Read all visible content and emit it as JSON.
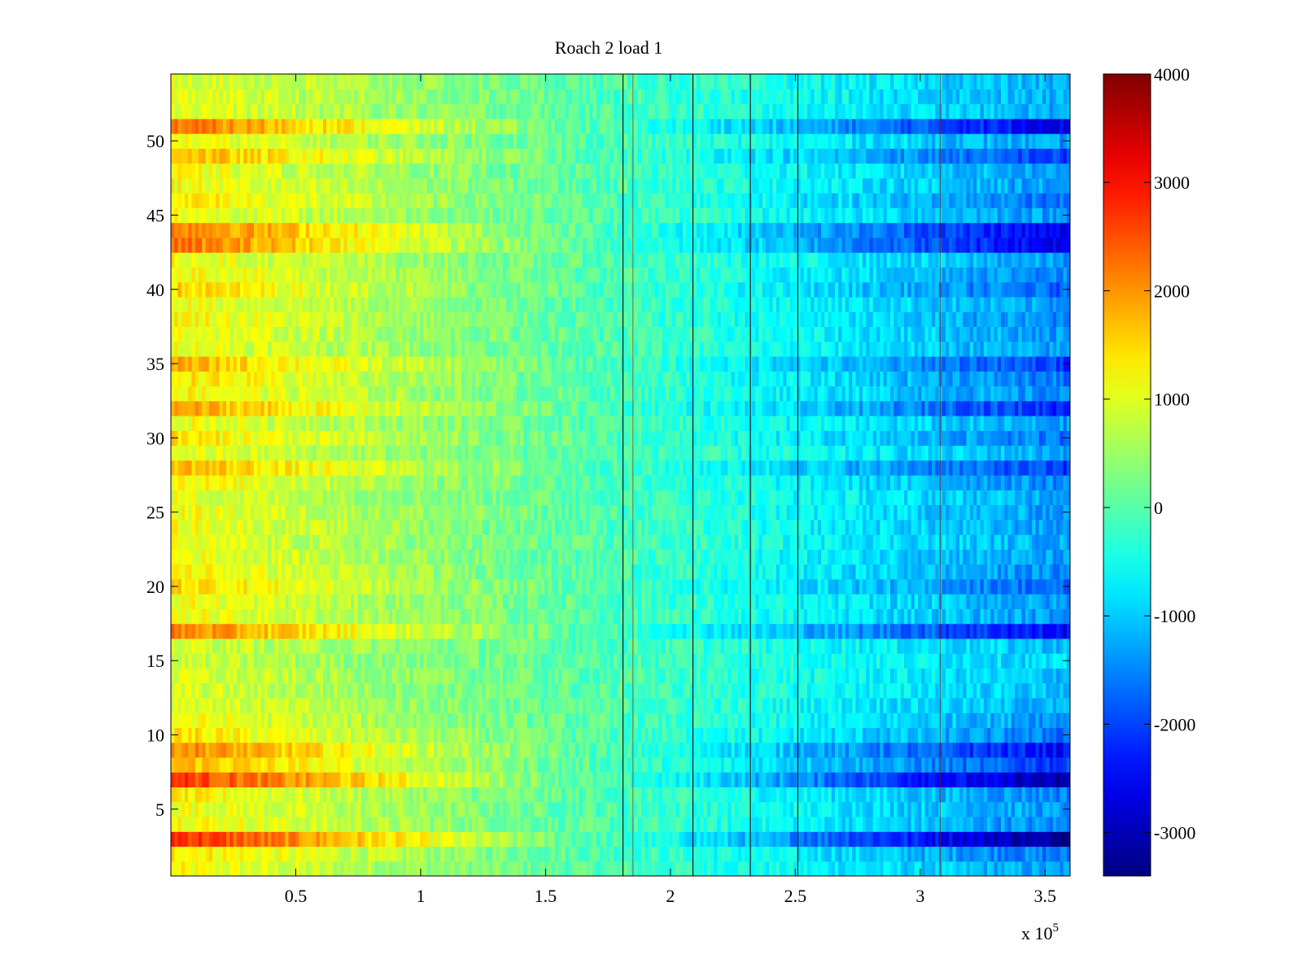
{
  "chart_data": {
    "type": "heatmap",
    "title": "Roach 2 load 1",
    "xlabel": "",
    "ylabel": "",
    "x_exponent_label": "x 10",
    "x_exponent_power": "5",
    "x_range": [
      0,
      3.6
    ],
    "y_range": [
      0.5,
      54.5
    ],
    "x_ticks": [
      0.5,
      1,
      1.5,
      2,
      2.5,
      3,
      3.5
    ],
    "x_tick_labels": [
      "0.5",
      "1",
      "1.5",
      "2",
      "2.5",
      "3",
      "3.5"
    ],
    "y_ticks": [
      5,
      10,
      15,
      20,
      25,
      30,
      35,
      40,
      45,
      50
    ],
    "y_tick_labels": [
      "5",
      "10",
      "15",
      "20",
      "25",
      "30",
      "35",
      "40",
      "45",
      "50"
    ],
    "colorbar": {
      "colormap": "jet",
      "range": [
        -3400,
        4000
      ],
      "ticks": [
        4000,
        3000,
        2000,
        1000,
        0,
        -1000,
        -2000,
        -3000
      ],
      "tick_labels": [
        "4000",
        "3000",
        "2000",
        "1000",
        "0",
        "-1000",
        "-2000",
        "-3000"
      ]
    },
    "rows": 54,
    "value_model": "Each row drifts linearly from ~+1200 at x=0 to ~-1400 at x=3.6e5; row strength scales the drift.",
    "row_strength": [
      1.0,
      1.2,
      2.4,
      1.1,
      1.0,
      1.1,
      2.3,
      1.5,
      1.8,
      1.2,
      1.0,
      0.9,
      0.8,
      0.8,
      0.7,
      0.8,
      1.8,
      1.0,
      1.0,
      1.3,
      1.1,
      1.0,
      0.9,
      1.0,
      1.0,
      0.9,
      1.1,
      1.5,
      0.9,
      1.2,
      1.0,
      1.6,
      1.1,
      1.2,
      1.5,
      1.0,
      1.0,
      1.1,
      1.0,
      1.3,
      1.1,
      1.0,
      1.9,
      1.9,
      1.0,
      1.2,
      1.0,
      1.0,
      1.5,
      1.0,
      1.9,
      0.9,
      0.9,
      0.9
    ],
    "vertical_lines_x": [
      1.81,
      2.09,
      2.32,
      2.51
    ],
    "faint_vertical_lines_x": [
      1.85,
      3.08
    ]
  }
}
